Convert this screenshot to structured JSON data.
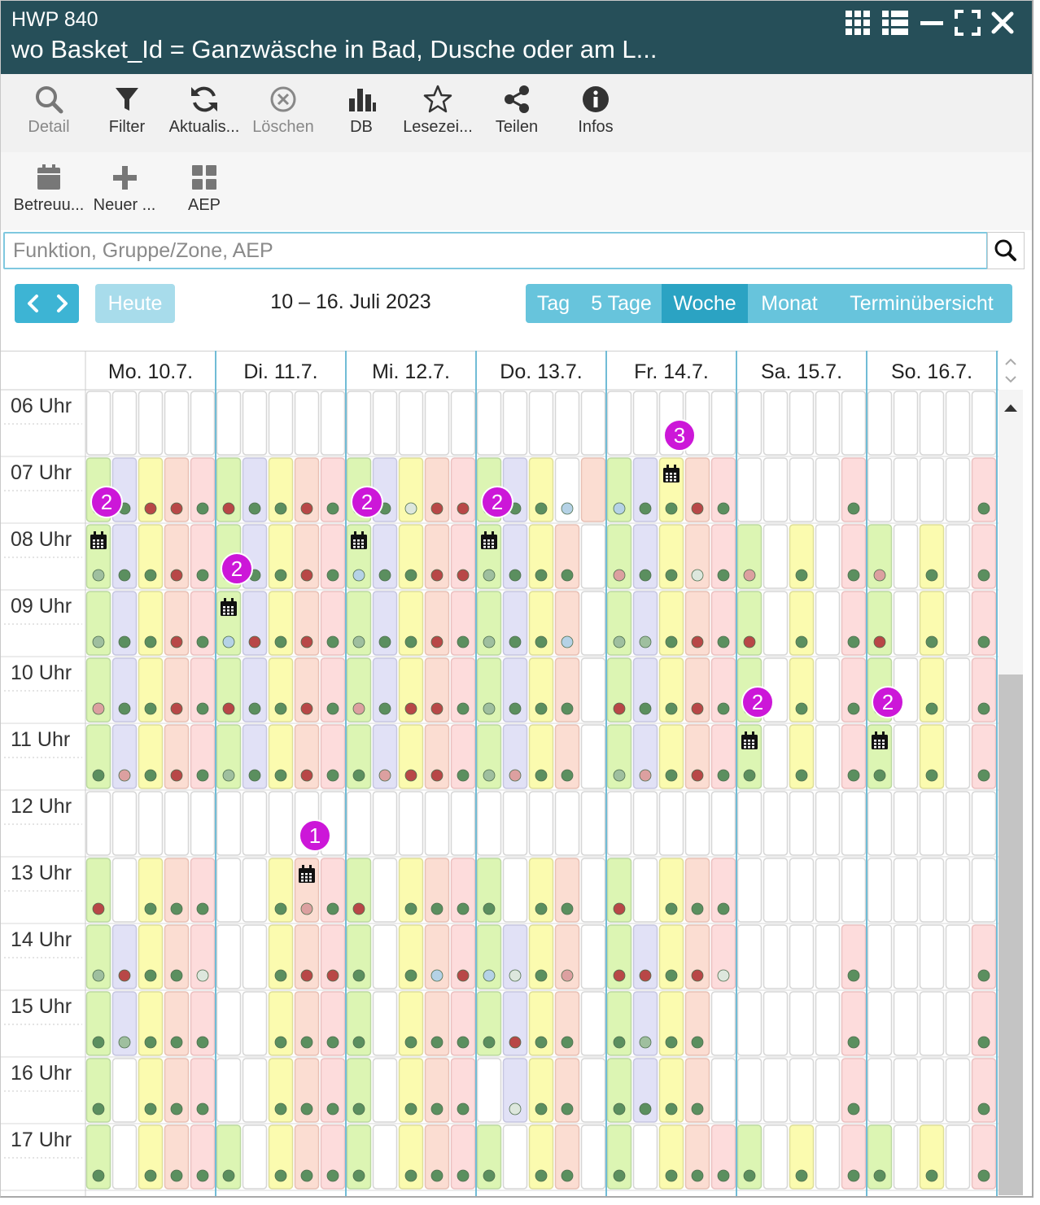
{
  "window": {
    "title_small": "HWP 840",
    "title_big": "wo Basket_Id = Ganzwäsche in Bad, Dusche oder am L...",
    "controls": [
      "grid-icon",
      "list-icon",
      "minimize-icon",
      "fullscreen-icon",
      "close-icon"
    ]
  },
  "toolbar": [
    {
      "label": "Detail",
      "icon": "search-icon",
      "disabled": true
    },
    {
      "label": "Filter",
      "icon": "filter-icon",
      "disabled": false
    },
    {
      "label": "Aktualis...",
      "icon": "refresh-icon",
      "disabled": false
    },
    {
      "label": "Löschen",
      "icon": "delete-icon",
      "disabled": true
    },
    {
      "label": "DB",
      "icon": "bar-chart-icon",
      "disabled": false
    },
    {
      "label": "Lesezei...",
      "icon": "star-icon",
      "disabled": false
    },
    {
      "label": "Teilen",
      "icon": "share-icon",
      "disabled": false
    },
    {
      "label": "Infos",
      "icon": "info-icon",
      "disabled": false
    }
  ],
  "toolbar2": [
    {
      "label": "Betreuu...",
      "icon": "calendar-icon"
    },
    {
      "label": "Neuer ...",
      "icon": "plus-icon"
    },
    {
      "label": "AEP",
      "icon": "tiles-icon"
    }
  ],
  "search": {
    "placeholder": "Funktion, Gruppe/Zone, AEP",
    "value": ""
  },
  "nav": {
    "today_label": "Heute",
    "date_range": "10 – 16. Juli 2023"
  },
  "views": [
    {
      "label": "Tag",
      "active": false
    },
    {
      "label": "5 Tage",
      "active": false
    },
    {
      "label": "Woche",
      "active": true
    },
    {
      "label": "Monat",
      "active": false
    },
    {
      "label": "Terminübersicht",
      "active": false
    }
  ],
  "colors": {
    "titlebar": "#264f59",
    "accent": "#3db4d4",
    "column_fills": {
      "g": "#dcf5b3",
      "p": "#e1e1f6",
      "y": "#fbfbaf",
      "s": "#fbddd2",
      "r": "#fddcdc"
    },
    "column_borders": {
      "g": "#bcd9a0",
      "p": "#c6c6e0",
      "y": "#dede98",
      "s": "#e8c0b4",
      "r": "#ebc0c0"
    },
    "dots": {
      "G": "#5b8f5f",
      "R": "#b84747",
      "L": "#9fbf9f",
      "P": "#dca0a0",
      "B": "#b5d2e6",
      "W": "#dde7dd"
    },
    "badge": "#cc17d8",
    "day_separator": "#71bcd6"
  },
  "calendar": {
    "days": [
      "Mo. 10.7.",
      "Di. 11.7.",
      "Mi. 12.7.",
      "Do. 13.7.",
      "Fr. 14.7.",
      "Sa. 15.7.",
      "So. 16.7."
    ],
    "hours": [
      "06 Uhr",
      "07 Uhr",
      "08 Uhr",
      "09 Uhr",
      "10 Uhr",
      "11 Uhr",
      "12 Uhr",
      "13 Uhr",
      "14 Uhr",
      "15 Uhr",
      "16 Uhr",
      "17 Uhr"
    ],
    "legend_note": "Per hour row: 7 day strings of 5 characters. Uppercase letter = colored slot with status dot (g/p/y/s/r colour, dot colour at matching index), '.' = empty slot.",
    "rows": [
      {
        "hour": "06 Uhr",
        "slots": [
          ".....",
          ".....",
          ".....",
          ".....",
          ".....",
          ".....",
          "....."
        ],
        "dots": [
          "",
          "",
          "",
          "",
          "",
          "",
          ""
        ]
      },
      {
        "hour": "07 Uhr",
        "slots": [
          "gpysr",
          "gpysr",
          "gpysr",
          "gpy s",
          "gpysr",
          "....r",
          "....r"
        ],
        "dots": [
          "GGRRG",
          "RGGRG",
          "GGWRR",
          "GGGB.",
          "BGGRG",
          "....G",
          "....G"
        ]
      },
      {
        "hour": "08 Uhr",
        "slots": [
          "gpysr",
          "gpysr",
          "gpysr",
          "gpys.",
          "gpysr",
          "g.y.r",
          "g.y.r"
        ],
        "dots": [
          "LGGRG",
          "RGGRG",
          "BGGRR",
          "LGGG.",
          "PGGWG",
          "P.G.G",
          "P.G.G"
        ]
      },
      {
        "hour": "09 Uhr",
        "slots": [
          "gpysr",
          "gpysr",
          "gpysr",
          "gpys.",
          "gpysr",
          "g.y.r",
          "g.y.r"
        ],
        "dots": [
          "LGGRG",
          "BRGRG",
          "LGGRG",
          "LGGB.",
          "LLGRG",
          "R.G.G",
          "R.G.G"
        ]
      },
      {
        "hour": "10 Uhr",
        "slots": [
          "gpysr",
          "gpysr",
          "gpysr",
          "gpys.",
          "gpysr",
          "g.y.r",
          "g.y.r"
        ],
        "dots": [
          "PGGRG",
          "RGGRG",
          "PGRRG",
          "LGGG.",
          "RGGRG",
          "R.G.G",
          "R.G.G"
        ]
      },
      {
        "hour": "11 Uhr",
        "slots": [
          "gpysr",
          "gpysr",
          "gpysr",
          "gpys.",
          "gpysr",
          "g.y.r",
          "g.y.r"
        ],
        "dots": [
          "GPGRG",
          "LGGRG",
          "GPRRG",
          "LPGG.",
          "LPGRG",
          "G.G.G",
          "G.G.G"
        ]
      },
      {
        "hour": "12 Uhr",
        "slots": [
          ".....",
          ".....",
          ".....",
          ".....",
          ".....",
          ".....",
          "....."
        ],
        "dots": [
          "",
          "",
          "",
          "",
          "",
          "",
          ""
        ]
      },
      {
        "hour": "13 Uhr",
        "slots": [
          "g.ysr",
          "..ysr",
          "g.ysr",
          "g.ys.",
          "g.ysr",
          ".....",
          "....."
        ],
        "dots": [
          "R.GGG",
          "..GPG",
          "R.GGG",
          "G.GG.",
          "R.GGG",
          "",
          ""
        ]
      },
      {
        "hour": "14 Uhr",
        "slots": [
          "gpysr",
          "..ysr",
          "g.ysr",
          "gpys.",
          "gpysr",
          "....r",
          "....r"
        ],
        "dots": [
          "LRGGW",
          "..GRR",
          "G.GBR",
          "BWGP.",
          "RRGRW",
          "....G",
          "....G"
        ]
      },
      {
        "hour": "15 Uhr",
        "slots": [
          "gpysr",
          "..ysr",
          "g.ysr",
          "gpys.",
          "gpys.",
          "....r",
          "....r"
        ],
        "dots": [
          "GLGGG",
          "..GGG",
          "G.GGG",
          "GRGG.",
          "GLGG.",
          "....G",
          "....G"
        ]
      },
      {
        "hour": "16 Uhr",
        "slots": [
          "g.ysr",
          "..ysr",
          "g.ysr",
          ".pys.",
          "gpys.",
          "....r",
          "....r"
        ],
        "dots": [
          "G.GGG",
          "..GGG",
          "G.GGG",
          ".WGG.",
          "GGGG.",
          "....G",
          "....G"
        ]
      },
      {
        "hour": "17 Uhr",
        "slots": [
          "g.ysr",
          "g.ysr",
          "g.ysr",
          "g.ys.",
          "g.ysr",
          "g.y.r",
          "g.y.r"
        ],
        "dots": [
          "G.GGG",
          "G.GGG",
          "G.GGG",
          "G.GG.",
          "G.GGG",
          "G.G.G",
          "G.G.G"
        ]
      }
    ],
    "badges": [
      {
        "day": 0,
        "hour": "07 Uhr",
        "count": "2",
        "slot": 0
      },
      {
        "day": 1,
        "hour": "08 Uhr",
        "count": "2",
        "slot": 0
      },
      {
        "day": 2,
        "hour": "07 Uhr",
        "count": "2",
        "slot": 0
      },
      {
        "day": 3,
        "hour": "07 Uhr",
        "count": "2",
        "slot": 0
      },
      {
        "day": 4,
        "hour": "06 Uhr",
        "count": "3",
        "slot": 2
      },
      {
        "day": 5,
        "hour": "10 Uhr",
        "count": "2",
        "slot": 0
      },
      {
        "day": 6,
        "hour": "10 Uhr",
        "count": "2",
        "slot": 0
      },
      {
        "day": 1,
        "hour": "12 Uhr",
        "count": "1",
        "slot": 3
      }
    ],
    "appointments": [
      {
        "day": 0,
        "hour": "08 Uhr",
        "slot": 0
      },
      {
        "day": 1,
        "hour": "09 Uhr",
        "slot": 0
      },
      {
        "day": 2,
        "hour": "08 Uhr",
        "slot": 0
      },
      {
        "day": 3,
        "hour": "08 Uhr",
        "slot": 0
      },
      {
        "day": 4,
        "hour": "07 Uhr",
        "slot": 2
      },
      {
        "day": 5,
        "hour": "11 Uhr",
        "slot": 0
      },
      {
        "day": 6,
        "hour": "11 Uhr",
        "slot": 0
      },
      {
        "day": 1,
        "hour": "13 Uhr",
        "slot": 3
      }
    ]
  }
}
